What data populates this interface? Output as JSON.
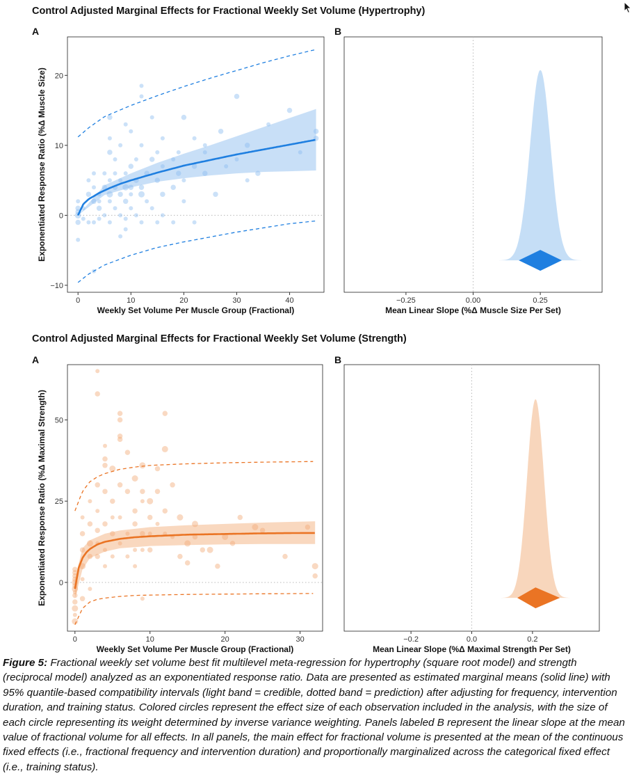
{
  "figure": {
    "top_title": "Control Adjusted Marginal Effects for Fractional Weekly Set Volume (Hypertrophy)",
    "bottom_title": "Control Adjusted Marginal Effects for Fractional Weekly Set Volume (Strength)",
    "caption_label": "Figure 5:",
    "caption_text": "Fractional weekly set volume best fit multilevel meta-regression for hypertrophy (square root model) and strength (reciprocal model) analyzed as an exponentiated response ratio. Data are presented as estimated marginal means (solid line) with 95% quantile-based compatibility intervals (light band = credible, dotted band = prediction) after adjusting for frequency, intervention duration, and training status. Colored circles represent the effect size of each observation included in the analysis, with the size of each circle representing its weight determined by inverse variance weighting. Panels labeled B represent the linear slope at the mean value of fractional volume for all effects. In all panels, the main effect for fractional volume is presented at the mean of the continuous fixed effects (i.e., fractional frequency and intervention duration) and proportionally marginalized across the categorical fixed effect (i.e., training status)."
  },
  "colors": {
    "hyp_line": "#1f7fe0",
    "hyp_band": "#c2dcf6",
    "hyp_point": "#8cbdf0",
    "str_line": "#ea7424",
    "str_band": "#f8d4b8",
    "str_point": "#f2ab78"
  },
  "chart_data": [
    {
      "id": "hyp_A",
      "type": "scatter",
      "panel_label": "A",
      "xlabel": "Weekly Set Volume Per Muscle Group (Fractional)",
      "ylabel": "Exponentiated Response Ratio (%Δ Muscle Size)",
      "xlim": [
        -2,
        46.5
      ],
      "ylim": [
        -11,
        25.5
      ],
      "xticks": [
        0,
        10,
        20,
        30,
        40
      ],
      "yticks": [
        -10,
        0,
        10,
        20
      ],
      "reference_line_y": 0,
      "model": "square root",
      "fit": {
        "x": [
          0,
          1,
          2,
          4,
          6,
          8,
          10,
          15,
          20,
          25,
          30,
          35,
          40,
          45
        ],
        "y": [
          0,
          1.6,
          2.3,
          3.2,
          3.9,
          4.5,
          5.0,
          6.1,
          7.1,
          7.9,
          8.7,
          9.4,
          10.1,
          10.8
        ]
      },
      "credible_band": {
        "x": [
          0,
          5,
          10,
          15,
          20,
          25,
          30,
          35,
          40,
          45
        ],
        "lower": [
          0,
          2.9,
          4.0,
          4.8,
          5.3,
          5.7,
          6.0,
          6.2,
          6.3,
          6.4
        ],
        "upper": [
          0,
          4.3,
          6.0,
          7.5,
          8.8,
          10.0,
          11.3,
          12.6,
          13.9,
          15.2
        ]
      },
      "prediction_band": {
        "x": [
          0,
          2,
          5,
          10,
          15,
          20,
          25,
          30,
          35,
          40,
          45
        ],
        "lower": [
          -9.6,
          -8.4,
          -7.1,
          -5.7,
          -4.6,
          -3.8,
          -3.1,
          -2.4,
          -1.8,
          -1.2,
          -0.8
        ],
        "upper": [
          11.2,
          12.5,
          14.1,
          15.7,
          17.1,
          18.4,
          19.6,
          20.7,
          21.8,
          22.8,
          23.7
        ]
      },
      "points": {
        "x": [
          0,
          0,
          0,
          0,
          0,
          0,
          1,
          1,
          2,
          2,
          2,
          3,
          3,
          3,
          3,
          3,
          4,
          4,
          4,
          4,
          5,
          5,
          5,
          6,
          6,
          6,
          6,
          6,
          6,
          6,
          7,
          7,
          7,
          7,
          8,
          8,
          8,
          8,
          8,
          9,
          9,
          9,
          9,
          9,
          9,
          10,
          10,
          10,
          10,
          10,
          11,
          11,
          11,
          12,
          12,
          12,
          12,
          12,
          12,
          13,
          13,
          14,
          14,
          14,
          15,
          15,
          15,
          16,
          16,
          16,
          16,
          18,
          18,
          18,
          19,
          19,
          20,
          20,
          20,
          22,
          22,
          22,
          24,
          24,
          24,
          26,
          27,
          28,
          30,
          30,
          32,
          32,
          34,
          36,
          40,
          42,
          45,
          45
        ],
        "y": [
          -1,
          0,
          1,
          2,
          -3.5,
          0.5,
          1,
          -0.5,
          3,
          -1,
          5,
          2,
          4,
          6,
          -8,
          -1,
          1,
          3,
          2,
          -0.5,
          4,
          0,
          6,
          3,
          9,
          11,
          14,
          -1,
          2,
          5,
          4,
          6,
          8,
          1,
          3,
          5,
          -3,
          10,
          0,
          4,
          2,
          6,
          -2,
          13,
          -0.5,
          4,
          7,
          1,
          3,
          12,
          5,
          8,
          0,
          3,
          4,
          18.5,
          17,
          10,
          -1,
          6,
          2,
          8,
          14,
          1,
          5,
          9,
          -1,
          3,
          7,
          11,
          0,
          4,
          8,
          -1,
          6,
          9,
          14,
          5,
          2,
          7,
          11,
          -1,
          6,
          9,
          10,
          3,
          12,
          7,
          17,
          8,
          10,
          5,
          6,
          13,
          15,
          9,
          12,
          11
        ],
        "w": [
          5,
          6,
          5,
          4,
          4,
          5,
          4,
          4,
          5,
          4,
          4,
          5,
          4,
          4,
          4,
          4,
          5,
          4,
          4,
          4,
          5,
          4,
          4,
          6,
          5,
          4,
          5,
          4,
          4,
          4,
          5,
          4,
          4,
          4,
          5,
          4,
          4,
          4,
          4,
          6,
          5,
          4,
          4,
          4,
          4,
          5,
          5,
          4,
          4,
          4,
          5,
          4,
          4,
          6,
          5,
          4,
          4,
          4,
          4,
          5,
          4,
          5,
          4,
          4,
          5,
          4,
          4,
          5,
          4,
          4,
          4,
          5,
          4,
          4,
          5,
          4,
          5,
          4,
          4,
          5,
          4,
          4,
          5,
          4,
          4,
          5,
          5,
          4,
          5,
          4,
          5,
          4,
          5,
          4,
          5,
          4,
          5,
          5
        ]
      }
    },
    {
      "id": "hyp_B",
      "type": "area",
      "panel_label": "B",
      "xlabel": "Mean Linear Slope (%Δ Muscle Size Per Set)",
      "xlim": [
        -0.48,
        0.48
      ],
      "xticks": [
        -0.25,
        0,
        0.25
      ],
      "xtick_labels": [
        "−0.25",
        "0.00",
        "0.25"
      ],
      "reference_line_x": 0,
      "density": {
        "mean": 0.25,
        "sd": 0.038,
        "peak": 1.0
      },
      "interval": {
        "lower": 0.17,
        "median": 0.25,
        "upper": 0.33
      }
    },
    {
      "id": "str_A",
      "type": "scatter",
      "panel_label": "A",
      "xlabel": "Weekly Set Volume Per Muscle Group (Fractional)",
      "ylabel": "Exponentiated Response Ratio (%Δ Maximal Strength)",
      "xlim": [
        -1,
        33
      ],
      "ylim": [
        -15,
        67
      ],
      "xticks": [
        0,
        10,
        20,
        30
      ],
      "yticks": [
        0,
        25,
        50
      ],
      "reference_line_y": 0,
      "model": "reciprocal",
      "fit": {
        "x": [
          0,
          0.5,
          1,
          1.5,
          2,
          3,
          4,
          6,
          8,
          10,
          15,
          20,
          25,
          30,
          32
        ],
        "y": [
          -2,
          4.5,
          7.5,
          9.2,
          10.3,
          11.7,
          12.5,
          13.4,
          13.9,
          14.2,
          14.7,
          14.9,
          15.1,
          15.2,
          15.2
        ]
      },
      "credible_band": {
        "x": [
          0,
          1,
          2,
          4,
          6,
          10,
          15,
          20,
          25,
          32
        ],
        "lower": [
          -5,
          4,
          7.5,
          9.5,
          10.5,
          11.2,
          11.5,
          11.7,
          11.8,
          11.8
        ],
        "upper": [
          1,
          10.5,
          13.0,
          15.0,
          16.0,
          17.0,
          17.6,
          18.0,
          18.4,
          18.8
        ]
      },
      "prediction_band": {
        "x": [
          0,
          1,
          2,
          3,
          4,
          6,
          8,
          10,
          15,
          20,
          25,
          32
        ],
        "lower": [
          -13,
          -8,
          -6,
          -5.2,
          -4.8,
          -4.3,
          -4.0,
          -3.9,
          -3.7,
          -3.6,
          -3.5,
          -3.4
        ],
        "upper": [
          22,
          28,
          31,
          32.5,
          33.5,
          34.8,
          35.5,
          36.0,
          36.5,
          36.8,
          37.0,
          37.2
        ]
      },
      "points": {
        "x": [
          0,
          0,
          0,
          0,
          0,
          0,
          0,
          0,
          0,
          0,
          0,
          0,
          0,
          1,
          1,
          1,
          1,
          1,
          1,
          2,
          2,
          2,
          2,
          2,
          3,
          3,
          3,
          3,
          3,
          3,
          3,
          4,
          4,
          4,
          4,
          4,
          4,
          4,
          5,
          5,
          5,
          5,
          5,
          6,
          6,
          6,
          6,
          6,
          6,
          6,
          7,
          7,
          7,
          7,
          8,
          8,
          8,
          8,
          8,
          9,
          9,
          9,
          9,
          9,
          9,
          10,
          10,
          10,
          10,
          11,
          11,
          11,
          12,
          12,
          12,
          12,
          13,
          13,
          14,
          14,
          15,
          15,
          16,
          16,
          17,
          18,
          19,
          20,
          21,
          22,
          24,
          25,
          28,
          31,
          32,
          32
        ],
        "y": [
          -12,
          -8,
          -4,
          -2,
          0,
          2,
          4,
          -6,
          1,
          -10,
          3,
          -1,
          -3,
          5,
          10,
          -5,
          15,
          20,
          1,
          12,
          8,
          18,
          25,
          -2,
          65,
          58,
          30,
          16,
          8,
          22,
          12,
          38,
          36,
          28,
          18,
          10,
          5,
          42,
          35,
          15,
          25,
          8,
          20,
          52,
          50,
          45,
          44,
          30,
          12,
          20,
          40,
          28,
          8,
          15,
          32,
          22,
          18,
          10,
          5,
          36,
          28,
          15,
          10,
          -5,
          25,
          25,
          20,
          10,
          15,
          35,
          28,
          18,
          52,
          41,
          22,
          15,
          30,
          14,
          20,
          8,
          12,
          6,
          18,
          14,
          10,
          10,
          5,
          14,
          12,
          20,
          17,
          16,
          8,
          17,
          5,
          2
        ],
        "w": [
          6,
          6,
          5,
          6,
          6,
          5,
          5,
          5,
          5,
          4,
          5,
          5,
          4,
          6,
          5,
          5,
          5,
          4,
          4,
          6,
          5,
          5,
          4,
          4,
          4,
          5,
          5,
          5,
          5,
          4,
          4,
          5,
          5,
          5,
          5,
          4,
          4,
          4,
          6,
          5,
          5,
          4,
          4,
          5,
          5,
          5,
          5,
          5,
          4,
          4,
          5,
          5,
          4,
          4,
          6,
          5,
          5,
          4,
          4,
          6,
          5,
          5,
          4,
          4,
          4,
          6,
          5,
          5,
          4,
          5,
          5,
          4,
          5,
          6,
          5,
          4,
          5,
          4,
          6,
          5,
          6,
          5,
          6,
          5,
          5,
          6,
          5,
          6,
          5,
          5,
          6,
          5,
          5,
          5,
          6,
          5
        ]
      }
    },
    {
      "id": "str_B",
      "type": "area",
      "panel_label": "B",
      "xlabel": "Mean Linear Slope (%Δ Maximal Strength Per Set)",
      "xlim": [
        -0.42,
        0.42
      ],
      "xticks": [
        -0.2,
        0,
        0.2
      ],
      "xtick_labels": [
        "−0.2",
        "0.0",
        "0.2"
      ],
      "reference_line_x": 0,
      "density": {
        "mean": 0.21,
        "sd": 0.028,
        "peak": 1.0
      },
      "interval": {
        "lower": 0.15,
        "median": 0.21,
        "upper": 0.29
      }
    }
  ]
}
